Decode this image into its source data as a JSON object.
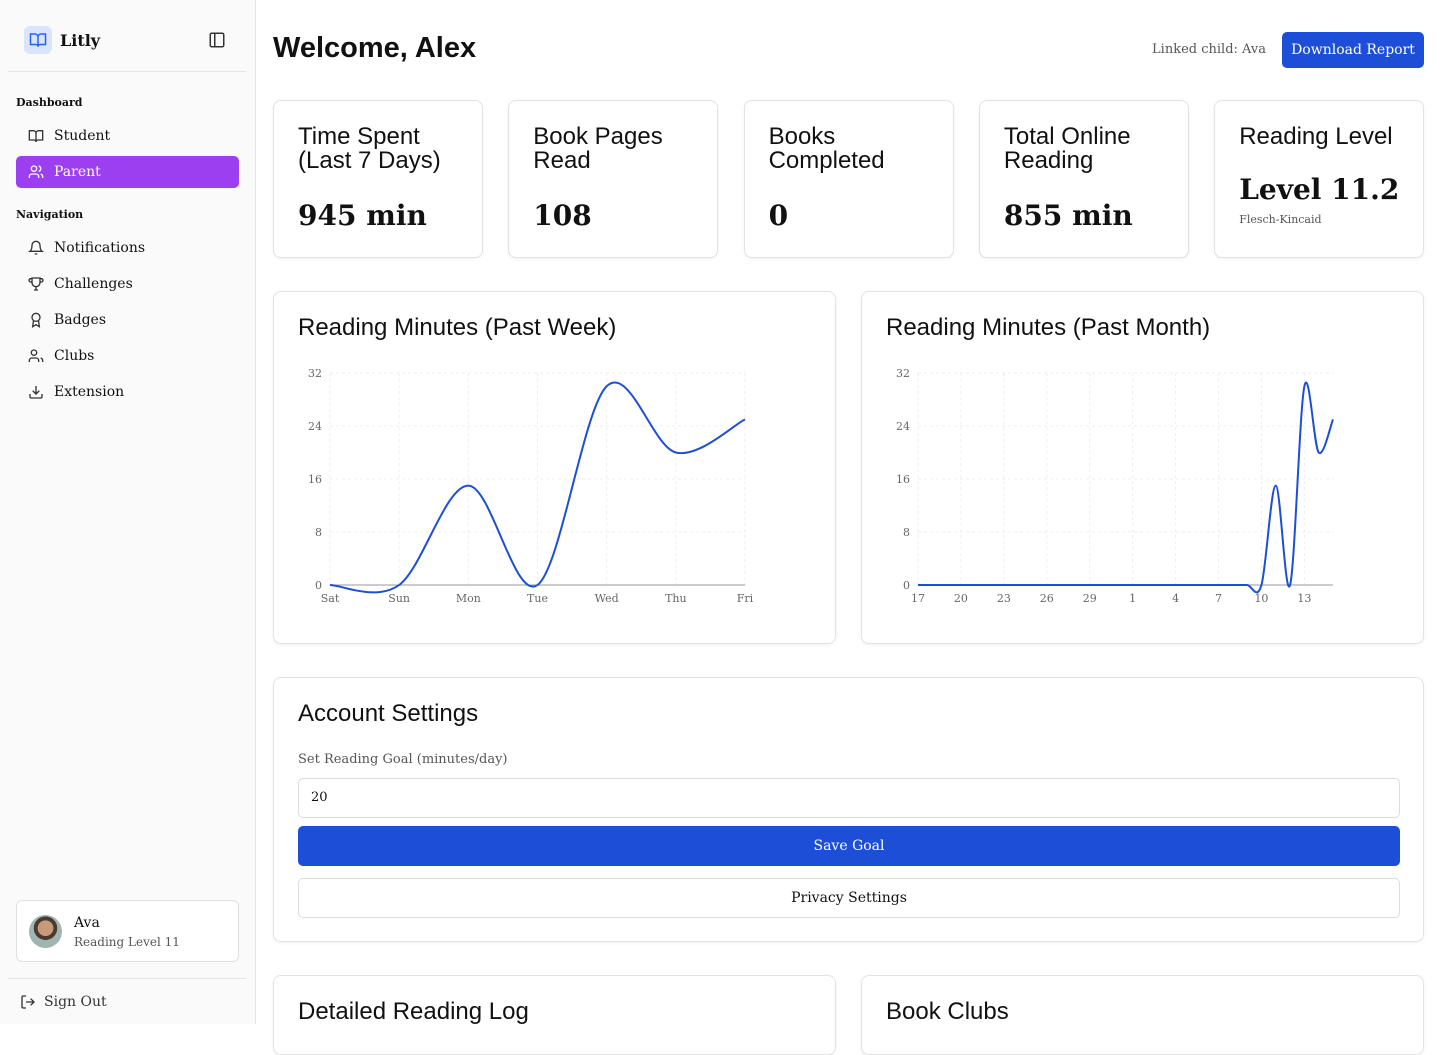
{
  "sidebar": {
    "brand": "Litly",
    "sections": [
      {
        "title": "Dashboard",
        "items": [
          "Student",
          "Parent"
        ]
      },
      {
        "title": "Navigation",
        "items": [
          "Notifications",
          "Challenges",
          "Badges",
          "Clubs",
          "Extension"
        ]
      }
    ],
    "user": {
      "name": "Ava",
      "subtitle": "Reading Level 11"
    },
    "sign_out": "Sign Out"
  },
  "header": {
    "title": "Welcome, Alex",
    "linked": "Linked child: Ava",
    "button": "Download Report"
  },
  "stats": [
    {
      "label": "Time Spent (Last 7 Days)",
      "value": "945 min"
    },
    {
      "label": "Book Pages Read",
      "value": "108"
    },
    {
      "label": "Books Completed",
      "value": "0"
    },
    {
      "label": "Total Online Reading",
      "value": "855 min"
    },
    {
      "label": "Reading Level",
      "value": "Level 11.2",
      "note": "Flesch-Kincaid"
    }
  ],
  "charts": [
    {
      "type": "line",
      "title": "Reading Minutes (Past Week)",
      "categories": [
        "Sat",
        "Sun",
        "Mon",
        "Tue",
        "Wed",
        "Thu",
        "Fri"
      ],
      "values": [
        0,
        0,
        15,
        0,
        30,
        20,
        25
      ],
      "color": "#1d4ed8",
      "ylim": [
        0,
        32
      ],
      "yticks": [
        0,
        8,
        16,
        24,
        32
      ],
      "grid": true
    },
    {
      "type": "line",
      "title": "Reading Minutes (Past Month)",
      "categories": [
        "17",
        null,
        null,
        "20",
        null,
        null,
        "23",
        null,
        null,
        "26",
        null,
        null,
        "29",
        null,
        null,
        "1",
        null,
        null,
        "4",
        null,
        null,
        "7",
        null,
        null,
        "10",
        null,
        null,
        "13",
        null,
        null
      ],
      "values": [
        0,
        0,
        0,
        0,
        0,
        0,
        0,
        0,
        0,
        0,
        0,
        0,
        0,
        0,
        0,
        0,
        0,
        0,
        0,
        0,
        0,
        0,
        0,
        0,
        0,
        15,
        0,
        30,
        20,
        25
      ],
      "color": "#1d4ed8",
      "ylim": [
        0,
        32
      ],
      "yticks": [
        0,
        8,
        16,
        24,
        32
      ],
      "grid": true
    }
  ],
  "settings": {
    "title": "Account Settings",
    "goal_label": "Set Reading Goal (minutes/day)",
    "goal_value": "20",
    "save": "Save Goal",
    "privacy": "Privacy Settings"
  },
  "bottom": [
    "Detailed Reading Log",
    "Book Clubs"
  ]
}
